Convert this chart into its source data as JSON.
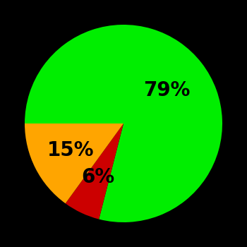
{
  "slices": [
    79,
    6,
    15
  ],
  "colors": [
    "#00ee00",
    "#cc0000",
    "#ffa500"
  ],
  "labels": [
    "79%",
    "6%",
    "15%"
  ],
  "background_color": "#000000",
  "label_fontsize": 20,
  "label_fontweight": "bold",
  "startangle": 180,
  "counterclock": false,
  "label_radii": [
    0.55,
    0.6,
    0.6
  ],
  "figsize": [
    3.5,
    3.5
  ],
  "dpi": 100
}
